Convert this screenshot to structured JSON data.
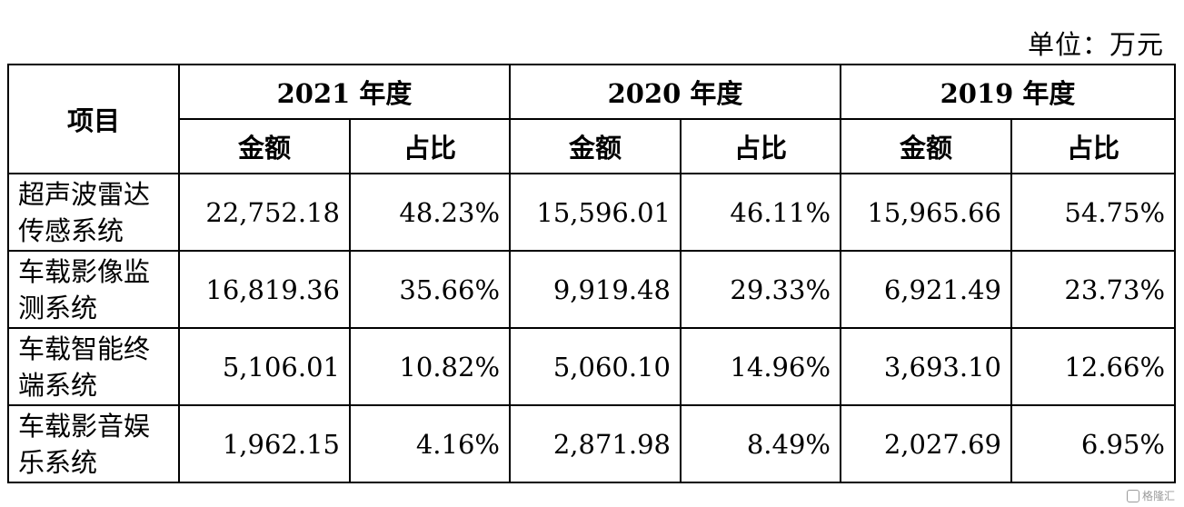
{
  "unit_label": "单位：万元",
  "header": {
    "item": "项目",
    "years": [
      "2021 年度",
      "2020 年度",
      "2019 年度"
    ],
    "amount": "金额",
    "ratio": "占比"
  },
  "rows": [
    {
      "name_line1": "超声波雷达",
      "name_line2": "传感系统",
      "v": [
        "22,752.18",
        "48.23%",
        "15,596.01",
        "46.11%",
        "15,965.66",
        "54.75%"
      ]
    },
    {
      "name_line1": "车载影像监",
      "name_line2": "测系统",
      "v": [
        "16,819.36",
        "35.66%",
        "9,919.48",
        "29.33%",
        "6,921.49",
        "23.73%"
      ]
    },
    {
      "name_line1": "车载智能终",
      "name_line2": "端系统",
      "v": [
        "5,106.01",
        "10.82%",
        "5,060.10",
        "14.96%",
        "3,693.10",
        "12.66%"
      ]
    },
    {
      "name_line1": "车载影音娱",
      "name_line2": "乐系统",
      "v": [
        "1,962.15",
        "4.16%",
        "2,871.98",
        "8.49%",
        "2,027.69",
        "6.95%"
      ]
    }
  ],
  "watermark": "格隆汇"
}
